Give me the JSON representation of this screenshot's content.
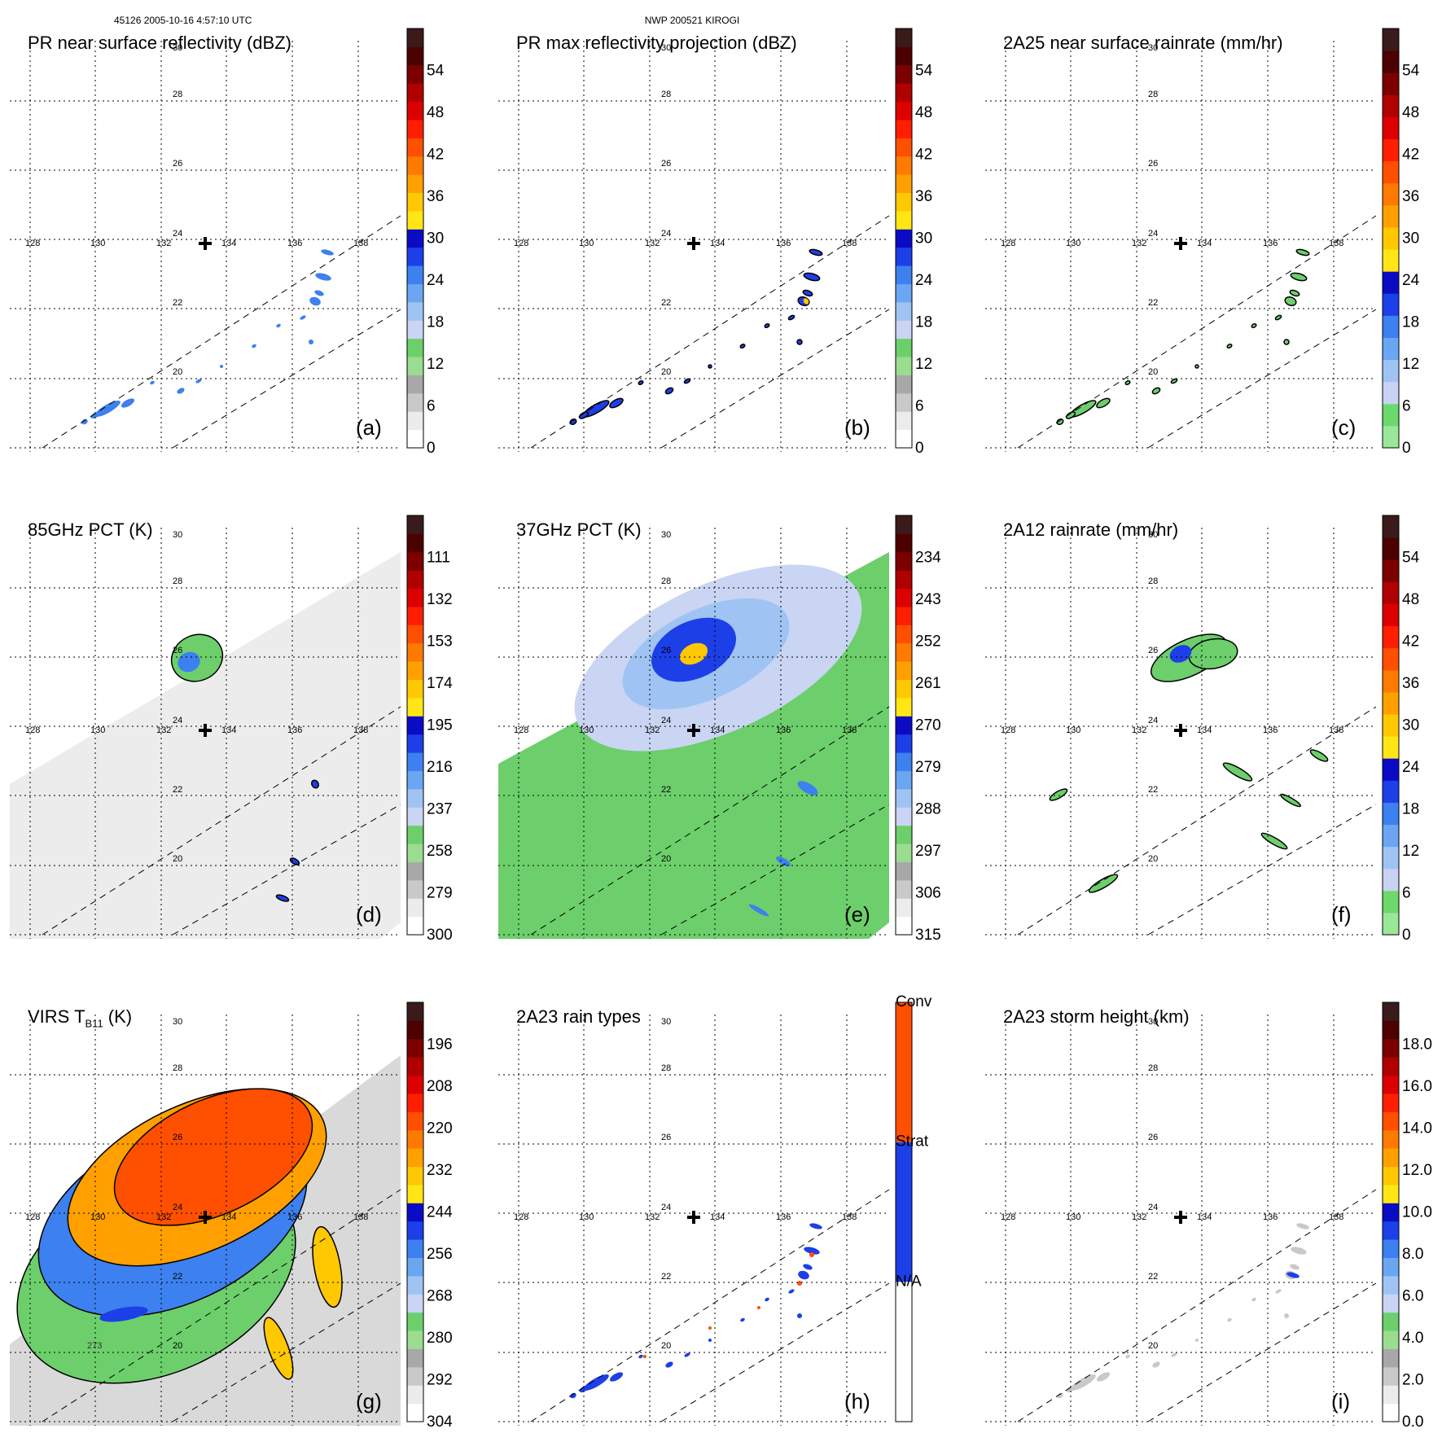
{
  "header": {
    "left": "45126 2005-10-16 4:57:10 UTC",
    "center": "NWP 200521 KIROGI"
  },
  "chart_data": [
    {
      "id": "a",
      "type": "heatmap",
      "title": "PR near surface reflectivity (dBZ)",
      "panel_label": "(a)",
      "lon_ticks": [
        "128",
        "130",
        "132",
        "134",
        "136",
        "138"
      ],
      "lat_ticks": [
        "20",
        "22",
        "24",
        "26",
        "28",
        "30"
      ],
      "colorbar": {
        "ticks": [
          "0",
          "6",
          "12",
          "18",
          "24",
          "30",
          "36",
          "42",
          "48",
          "54"
        ],
        "palette": "dbz"
      },
      "swath": "narrow"
    },
    {
      "id": "b",
      "type": "heatmap",
      "title": "PR max reflectivity projection (dBZ)",
      "panel_label": "(b)",
      "lon_ticks": [
        "128",
        "130",
        "132",
        "134",
        "136",
        "138"
      ],
      "lat_ticks": [
        "20",
        "22",
        "24",
        "26",
        "28",
        "30"
      ],
      "colorbar": {
        "ticks": [
          "0",
          "6",
          "12",
          "18",
          "24",
          "30",
          "36",
          "42",
          "48",
          "54"
        ],
        "palette": "dbz"
      },
      "swath": "narrow"
    },
    {
      "id": "c",
      "type": "heatmap",
      "title": "2A25 near surface rainrate (mm/hr)",
      "panel_label": "(c)",
      "lon_ticks": [
        "128",
        "130",
        "132",
        "134",
        "136",
        "138"
      ],
      "lat_ticks": [
        "20",
        "22",
        "24",
        "26",
        "28",
        "30"
      ],
      "colorbar": {
        "ticks": [
          "0",
          "6",
          "12",
          "18",
          "24",
          "30",
          "36",
          "42",
          "48",
          "54"
        ],
        "palette": "rain"
      },
      "swath": "narrow"
    },
    {
      "id": "d",
      "type": "heatmap",
      "title": "85GHz PCT (K)",
      "panel_label": "(d)",
      "lon_ticks": [
        "128",
        "130",
        "132",
        "134",
        "136",
        "138"
      ],
      "lat_ticks": [
        "20",
        "22",
        "24",
        "26",
        "28",
        "30"
      ],
      "colorbar": {
        "ticks": [
          "300",
          "279",
          "258",
          "237",
          "216",
          "195",
          "174",
          "153",
          "132",
          "111"
        ],
        "palette": "pct"
      },
      "swath": "wide"
    },
    {
      "id": "e",
      "type": "heatmap",
      "title": "37GHz PCT (K)",
      "panel_label": "(e)",
      "lon_ticks": [
        "128",
        "130",
        "132",
        "134",
        "136",
        "138"
      ],
      "lat_ticks": [
        "20",
        "22",
        "24",
        "26",
        "28",
        "30"
      ],
      "colorbar": {
        "ticks": [
          "315",
          "306",
          "297",
          "288",
          "279",
          "270",
          "261",
          "252",
          "243",
          "234"
        ],
        "palette": "pct"
      },
      "swath": "wide"
    },
    {
      "id": "f",
      "type": "heatmap",
      "title": "2A12 rainrate (mm/hr)",
      "panel_label": "(f)",
      "lon_ticks": [
        "128",
        "130",
        "132",
        "134",
        "136",
        "138"
      ],
      "lat_ticks": [
        "20",
        "22",
        "24",
        "26",
        "28",
        "30"
      ],
      "colorbar": {
        "ticks": [
          "0",
          "6",
          "12",
          "18",
          "24",
          "30",
          "36",
          "42",
          "48",
          "54"
        ],
        "palette": "rain"
      },
      "swath": "wide"
    },
    {
      "id": "g",
      "type": "heatmap",
      "title": "VIRS T",
      "title_sub": "B11",
      "title_unit": " (K)",
      "panel_label": "(g)",
      "contour_label": "273",
      "lon_ticks": [
        "128",
        "130",
        "132",
        "134",
        "136",
        "138"
      ],
      "lat_ticks": [
        "20",
        "22",
        "24",
        "26",
        "28",
        "30"
      ],
      "colorbar": {
        "ticks": [
          "304",
          "292",
          "280",
          "268",
          "256",
          "244",
          "232",
          "220",
          "208",
          "196"
        ],
        "palette": "virs"
      },
      "swath": "virs"
    },
    {
      "id": "h",
      "type": "heatmap",
      "title": "2A23 rain types",
      "panel_label": "(h)",
      "lon_ticks": [
        "128",
        "130",
        "132",
        "134",
        "136",
        "138"
      ],
      "lat_ticks": [
        "20",
        "22",
        "24",
        "26",
        "28",
        "30"
      ],
      "colorbar": {
        "ticks": [
          "N/A",
          "Strat",
          "Conv"
        ],
        "palette": "types"
      },
      "swath": "narrow"
    },
    {
      "id": "i",
      "type": "heatmap",
      "title": "2A23 storm height (km)",
      "panel_label": "(i)",
      "lon_ticks": [
        "128",
        "130",
        "132",
        "134",
        "136",
        "138"
      ],
      "lat_ticks": [
        "20",
        "22",
        "24",
        "26",
        "28",
        "30"
      ],
      "colorbar": {
        "ticks": [
          "0.0",
          "2.0",
          "4.0",
          "6.0",
          "8.0",
          "10.0",
          "12.0",
          "14.0",
          "16.0",
          "18.0"
        ],
        "palette": "height"
      },
      "swath": "narrow"
    }
  ]
}
